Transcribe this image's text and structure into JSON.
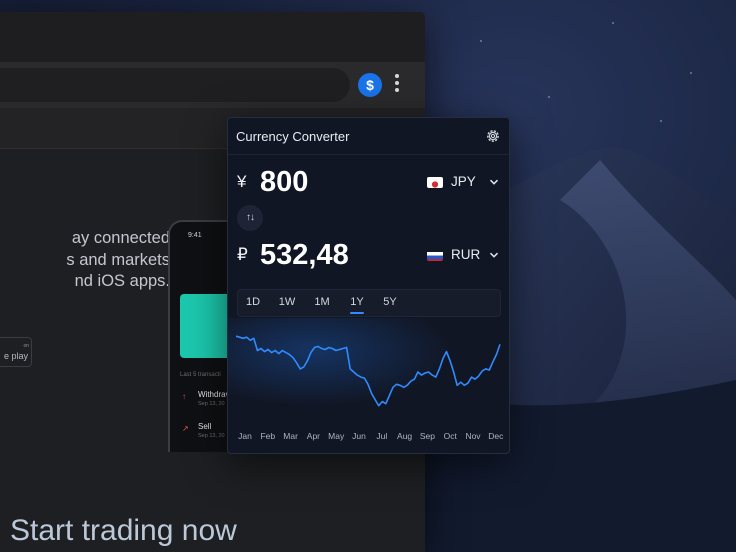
{
  "browser": {
    "extension_icon": "dollar-icon",
    "extension_symbol": "$",
    "menu_icon": "kebab-menu-icon"
  },
  "webpage": {
    "hero_lines": [
      "ay connected",
      "s and markets",
      "nd iOS apps."
    ],
    "store_badge_small": "on",
    "store_badge_big": "e play",
    "cta_heading": "Start trading now",
    "phone": {
      "time": "9:41",
      "card_symbol": "$",
      "caption": "Last 5 transacti",
      "transactions": [
        {
          "title": "Withdrav",
          "date": "Sep 13, 20",
          "icon": "arrow-up-icon"
        },
        {
          "title": "Sell",
          "date": "Sep 13, 20",
          "icon": "arrow-up-right-icon"
        }
      ]
    }
  },
  "converter": {
    "title": "Currency Converter",
    "settings_icon": "gear-icon",
    "from": {
      "symbol": "¥",
      "amount": "800",
      "code": "JPY",
      "flag": "japan-flag-icon"
    },
    "to": {
      "symbol": "₽",
      "amount": "532,48",
      "code": "RUR",
      "flag": "russia-flag-icon"
    },
    "swap_label": "↑↓",
    "ranges": [
      {
        "label": "1D",
        "active": false
      },
      {
        "label": "1W",
        "active": false
      },
      {
        "label": "1M",
        "active": false
      },
      {
        "label": "1Y",
        "active": true
      },
      {
        "label": "5Y",
        "active": false
      }
    ],
    "accent_color": "#2f8bff"
  },
  "chart_data": {
    "type": "line",
    "categories": [
      "Jan",
      "Feb",
      "Mar",
      "Apr",
      "May",
      "Jun",
      "Jul",
      "Aug",
      "Sep",
      "Oct",
      "Nov",
      "Dec"
    ],
    "x": [
      0.0,
      0.15,
      0.3,
      0.45,
      0.6,
      0.75,
      0.9,
      1.05,
      1.2,
      1.35,
      1.5,
      1.65,
      1.8,
      1.95,
      2.1,
      2.25,
      2.4,
      2.55,
      2.7,
      2.85,
      3.0,
      3.15,
      3.3,
      3.45,
      3.6,
      3.75,
      3.9,
      4.05,
      4.2,
      4.35,
      4.5,
      4.65,
      4.8,
      4.95,
      5.1,
      5.25,
      5.4,
      5.55,
      5.7,
      5.85,
      6.0,
      6.15,
      6.3,
      6.45,
      6.6,
      6.75,
      6.9,
      7.05,
      7.2,
      7.35,
      7.5,
      7.65,
      7.8,
      7.95,
      8.1,
      8.25,
      8.4,
      8.55,
      8.7,
      8.85,
      9.0,
      9.15,
      9.3,
      9.45,
      9.6,
      9.75,
      9.9,
      10.05,
      10.2,
      10.35,
      10.5,
      10.65,
      10.8,
      10.95,
      11.1
    ],
    "values": [
      90,
      89,
      88,
      89,
      86,
      88,
      76,
      78,
      75,
      77,
      74,
      76,
      73,
      76,
      74,
      72,
      69,
      64,
      58,
      60,
      66,
      74,
      79,
      80,
      78,
      77,
      79,
      78,
      76,
      77,
      78,
      79,
      58,
      55,
      52,
      50,
      49,
      43,
      34,
      28,
      22,
      26,
      24,
      32,
      40,
      43,
      42,
      40,
      42,
      46,
      48,
      55,
      52,
      54,
      55,
      52,
      50,
      58,
      68,
      75,
      66,
      55,
      42,
      45,
      42,
      44,
      50,
      48,
      51,
      56,
      58,
      57,
      65,
      72,
      82
    ],
    "title": "",
    "xlabel": "",
    "ylabel": "",
    "xlim": [
      0,
      11.1
    ],
    "ylim": [
      10,
      100
    ],
    "grid": false,
    "line_color": "#2f8bff"
  }
}
